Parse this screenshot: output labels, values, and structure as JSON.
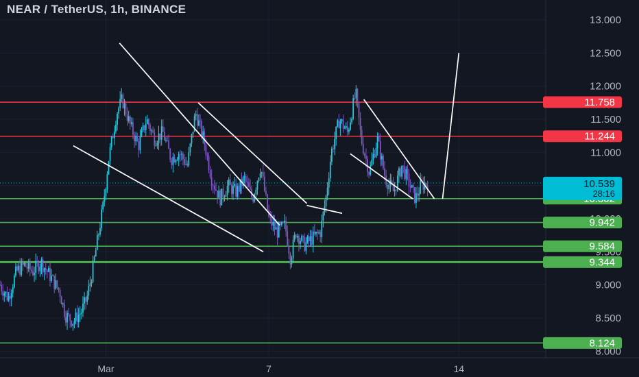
{
  "header": {
    "symbol_title": "NEAR / TetherUS, 1h, BINANCE"
  },
  "colors": {
    "background": "#131722",
    "axis_text": "#b2b5be",
    "red_line": "#f23645",
    "green_line": "#4caf50",
    "current_price": "#00bcd4",
    "candle_cyan": "#26c6da",
    "candle_purple": "#7e57c2",
    "trendline": "#ffffff"
  },
  "chart_data": {
    "type": "candlestick",
    "title": "NEAR / TetherUS, 1h, BINANCE",
    "ylim": [
      7.9,
      13.3
    ],
    "y_ticks": [
      "8.000",
      "8.500",
      "9.000",
      "9.500",
      "10.000",
      "10.500",
      "11.000",
      "11.500",
      "12.000",
      "12.500",
      "13.000"
    ],
    "x_ticks": [
      {
        "label": "Mar",
        "day": 1
      },
      {
        "label": "7",
        "day": 7
      },
      {
        "label": "14",
        "day": 14
      }
    ],
    "xlim_days": [
      -2.9,
      17.2
    ],
    "price_path": [
      [
        -2.9,
        9.0
      ],
      [
        -2.6,
        8.8
      ],
      [
        -2.3,
        9.2
      ],
      [
        -2.0,
        9.3
      ],
      [
        -1.7,
        9.2
      ],
      [
        -1.4,
        9.35
      ],
      [
        -1.0,
        9.1
      ],
      [
        -0.7,
        8.9
      ],
      [
        -0.5,
        8.55
      ],
      [
        -0.2,
        8.45
      ],
      [
        0.1,
        8.6
      ],
      [
        0.3,
        8.8
      ],
      [
        0.5,
        9.2
      ],
      [
        0.7,
        9.7
      ],
      [
        0.9,
        10.2
      ],
      [
        1.1,
        10.9
      ],
      [
        1.4,
        11.6
      ],
      [
        1.6,
        11.8
      ],
      [
        1.9,
        11.4
      ],
      [
        2.2,
        11.1
      ],
      [
        2.5,
        11.5
      ],
      [
        2.8,
        11.2
      ],
      [
        3.1,
        11.3
      ],
      [
        3.4,
        10.9
      ],
      [
        3.7,
        11.0
      ],
      [
        4.0,
        10.8
      ],
      [
        4.3,
        11.6
      ],
      [
        4.6,
        11.2
      ],
      [
        4.9,
        10.6
      ],
      [
        5.2,
        10.3
      ],
      [
        5.5,
        10.5
      ],
      [
        5.8,
        10.4
      ],
      [
        6.1,
        10.6
      ],
      [
        6.4,
        10.3
      ],
      [
        6.7,
        10.8
      ],
      [
        7.0,
        10.0
      ],
      [
        7.3,
        9.8
      ],
      [
        7.6,
        9.9
      ],
      [
        7.8,
        9.4
      ],
      [
        8.0,
        9.8
      ],
      [
        8.3,
        9.6
      ],
      [
        8.6,
        9.7
      ],
      [
        8.9,
        9.8
      ],
      [
        9.1,
        10.3
      ],
      [
        9.3,
        11.0
      ],
      [
        9.6,
        11.5
      ],
      [
        9.9,
        11.3
      ],
      [
        10.2,
        11.9
      ],
      [
        10.4,
        11.2
      ],
      [
        10.7,
        10.7
      ],
      [
        11.0,
        11.2
      ],
      [
        11.3,
        10.6
      ],
      [
        11.6,
        10.4
      ],
      [
        11.9,
        10.8
      ],
      [
        12.1,
        10.6
      ],
      [
        12.4,
        10.3
      ],
      [
        12.6,
        10.5
      ],
      [
        12.9,
        10.55
      ]
    ],
    "horizontal_levels": [
      {
        "label": "11.758",
        "value": 11.758,
        "color": "#f23645",
        "x_start_day": -2.9
      },
      {
        "label": "11.244",
        "value": 11.244,
        "color": "#f23645",
        "x_start_day": -2.9
      },
      {
        "label": "10.302",
        "value": 10.302,
        "color": "#4caf50",
        "x_start_day": -2.9
      },
      {
        "label": "9.942",
        "value": 9.942,
        "color": "#4caf50",
        "x_start_day": -2.9
      },
      {
        "label": "9.584",
        "value": 9.584,
        "color": "#4caf50",
        "x_start_day": -2.9
      },
      {
        "label": "9.344",
        "value": 9.344,
        "color": "#4caf50",
        "x_start_day": -2.9
      },
      {
        "label": "8.124",
        "value": 8.124,
        "color": "#4caf50",
        "x_start_day": -2.9
      }
    ],
    "current_price": {
      "label": "10.539",
      "value": 10.539,
      "countdown": "28:16"
    },
    "trendlines": [
      {
        "x1": 1.5,
        "y1": 12.65,
        "x2": 7.4,
        "y2": 9.9
      },
      {
        "x1": 4.4,
        "y1": 11.75,
        "x2": 8.4,
        "y2": 10.23
      },
      {
        "x1": -0.2,
        "y1": 11.1,
        "x2": 6.8,
        "y2": 9.5
      },
      {
        "x1": 8.4,
        "y1": 10.2,
        "x2": 9.7,
        "y2": 10.08
      },
      {
        "x1": 10.5,
        "y1": 11.8,
        "x2": 13.1,
        "y2": 10.3
      },
      {
        "x1": 10.0,
        "y1": 10.98,
        "x2": 12.3,
        "y2": 10.3
      },
      {
        "x1": 13.4,
        "y1": 10.3,
        "x2": 14.0,
        "y2": 12.5
      }
    ],
    "projection_start": {
      "x": 13.1,
      "y": 10.302
    }
  }
}
